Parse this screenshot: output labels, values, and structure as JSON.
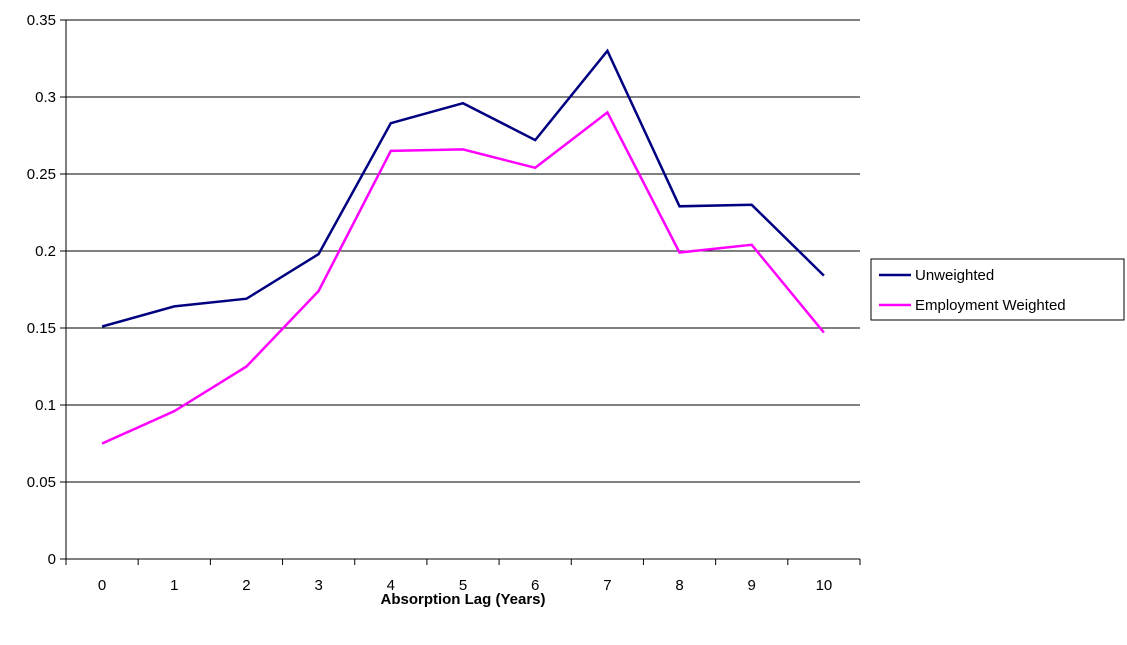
{
  "chart_data": {
    "type": "line",
    "title": "",
    "xlabel": "Absorption Lag (Years)",
    "ylabel": "",
    "categories": [
      "0",
      "1",
      "2",
      "3",
      "4",
      "5",
      "6",
      "7",
      "8",
      "9",
      "10"
    ],
    "ylim": [
      0,
      0.35
    ],
    "yticks": [
      "0",
      "0.05",
      "0.1",
      "0.15",
      "0.2",
      "0.25",
      "0.3",
      "0.35"
    ],
    "grid": true,
    "legend_position": "right",
    "series": [
      {
        "name": "Unweighted",
        "color": "#000080",
        "values": [
          0.151,
          0.164,
          0.169,
          0.198,
          0.283,
          0.296,
          0.272,
          0.33,
          0.229,
          0.23,
          0.184
        ]
      },
      {
        "name": "Employment Weighted",
        "color": "#FF00FF",
        "values": [
          0.075,
          0.096,
          0.125,
          0.174,
          0.265,
          0.266,
          0.254,
          0.29,
          0.199,
          0.204,
          0.147
        ]
      }
    ]
  }
}
